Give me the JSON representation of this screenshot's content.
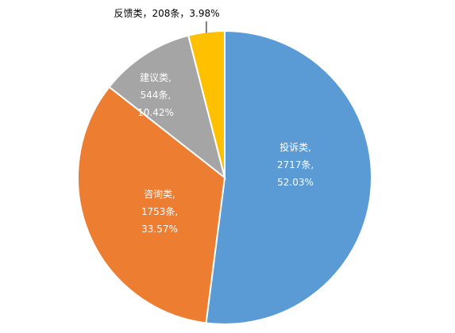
{
  "chart_data": {
    "type": "pie",
    "start_angle_deg": 0,
    "direction": "clockwise",
    "slices": [
      {
        "category": "投诉类",
        "value": 2717,
        "percent": 52.03,
        "color": "#5B9BD5",
        "label_lines": [
          "投诉类,",
          "2717条,",
          "52.03%"
        ]
      },
      {
        "category": "咨询类",
        "value": 1753,
        "percent": 33.57,
        "color": "#ED7D31",
        "label_lines": [
          "咨询类,",
          "1753条,",
          "33.57%"
        ]
      },
      {
        "category": "建议类",
        "value": 544,
        "percent": 10.42,
        "color": "#A5A5A5",
        "label_lines": [
          "建议类,",
          "544条,",
          "10.42%"
        ]
      },
      {
        "category": "反馈类",
        "value": 208,
        "percent": 3.98,
        "color": "#FFC000",
        "label_lines": [
          "反馈类，208条，3.98%"
        ]
      }
    ]
  }
}
